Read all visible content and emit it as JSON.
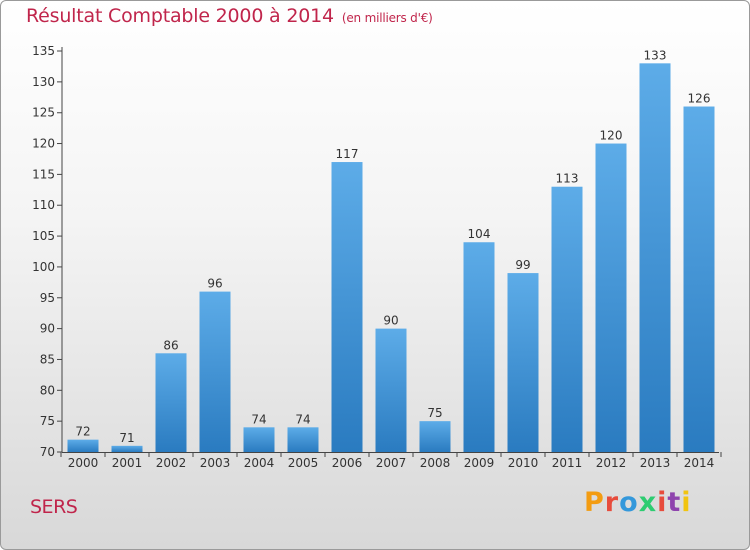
{
  "title": "Résultat Comptable 2000 à 2014",
  "subtitle": "(en milliers d'€)",
  "city": "SERS",
  "logo": {
    "letters": [
      "P",
      "r",
      "o",
      "x",
      "i",
      "t",
      "i"
    ],
    "colors": [
      "#f39c12",
      "#e74c3c",
      "#3498db",
      "#2ecc71",
      "#e74c3c",
      "#8e44ad",
      "#f1c40f"
    ]
  },
  "colors": {
    "title": "#c0254b",
    "bar_top": "#5dace8",
    "bar_bottom": "#2a7bc0",
    "axis": "#444444"
  },
  "chart_data": {
    "type": "bar",
    "categories": [
      "2000",
      "2001",
      "2002",
      "2003",
      "2004",
      "2005",
      "2006",
      "2007",
      "2008",
      "2009",
      "2010",
      "2011",
      "2012",
      "2013",
      "2014"
    ],
    "values": [
      72,
      71,
      86,
      96,
      74,
      74,
      117,
      90,
      75,
      104,
      99,
      113,
      120,
      133,
      126
    ],
    "ylim": [
      70,
      135
    ],
    "yticks": [
      70,
      75,
      80,
      85,
      90,
      95,
      100,
      105,
      110,
      115,
      120,
      125,
      130,
      135
    ],
    "grid": false,
    "data_labels": true,
    "title": "Résultat Comptable 2000 à 2014",
    "xlabel": "",
    "ylabel": ""
  }
}
